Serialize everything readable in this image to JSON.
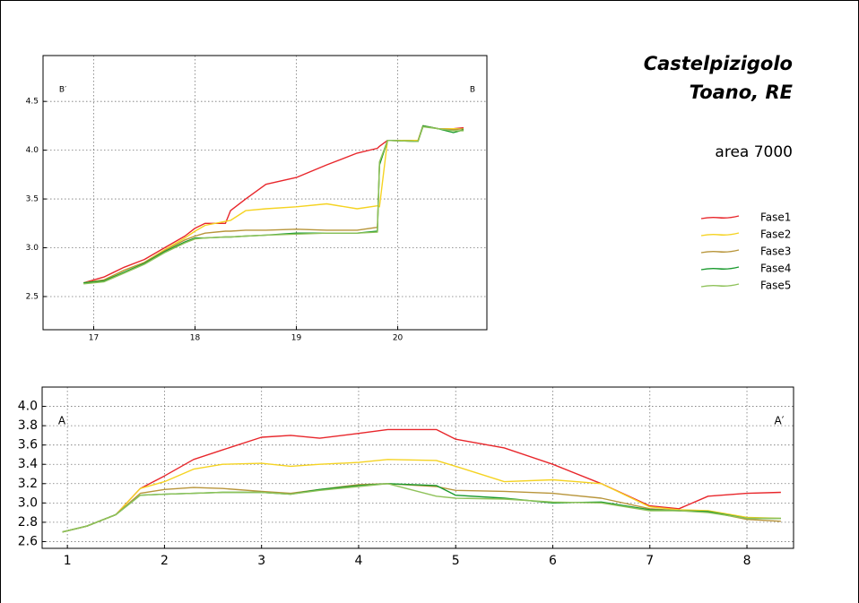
{
  "header": {
    "title": [
      "Castelpizigolo",
      "Toano, RE"
    ],
    "subtitle": "area 7000"
  },
  "chart_data": [
    {
      "type": "line",
      "annotations": [
        "B′",
        "B"
      ],
      "x": [
        16.9,
        17.1,
        17.3,
        17.5,
        17.7,
        17.9,
        18.0,
        18.1,
        18.3,
        18.35,
        18.5,
        18.7,
        19.0,
        19.3,
        19.6,
        19.8,
        19.82,
        19.9,
        20.2,
        20.25,
        20.4,
        20.55,
        20.65
      ],
      "xlim": [
        16.5,
        20.88
      ],
      "xticks": [
        17,
        18,
        19,
        20
      ],
      "ylim": [
        2.16,
        4.97
      ],
      "yticks": [
        2.5,
        {
          "value": 3,
          "label": "3.0"
        },
        3.5,
        {
          "value": 4,
          "label": "4.0"
        },
        4.5
      ],
      "grid": true,
      "series": [
        {
          "name": "Fase1",
          "color": "#e8262b",
          "values": [
            2.64,
            2.7,
            2.8,
            2.88,
            3.0,
            3.12,
            3.2,
            3.25,
            3.25,
            3.38,
            3.5,
            3.65,
            3.72,
            3.85,
            3.97,
            4.02,
            4.04,
            4.1,
            4.1,
            4.25,
            4.22,
            4.22,
            4.23
          ]
        },
        {
          "name": "Fase2",
          "color": "#f5d322",
          "values": [
            2.64,
            2.67,
            2.77,
            2.85,
            2.98,
            3.1,
            3.17,
            3.23,
            3.27,
            3.28,
            3.38,
            3.4,
            3.42,
            3.45,
            3.4,
            3.43,
            3.42,
            4.1,
            4.1,
            4.25,
            4.22,
            4.22,
            4.22
          ]
        },
        {
          "name": "Fase3",
          "color": "#b8953a",
          "values": [
            2.64,
            2.67,
            2.77,
            2.85,
            2.97,
            3.08,
            3.12,
            3.15,
            3.17,
            3.17,
            3.18,
            3.18,
            3.19,
            3.18,
            3.18,
            3.21,
            3.85,
            4.1,
            4.09,
            4.25,
            4.22,
            4.21,
            4.22
          ]
        },
        {
          "name": "Fase4",
          "color": "#1a9a2e",
          "values": [
            2.64,
            2.66,
            2.75,
            2.84,
            2.96,
            3.06,
            3.1,
            3.1,
            3.11,
            3.11,
            3.12,
            3.13,
            3.15,
            3.15,
            3.15,
            3.17,
            3.85,
            4.1,
            4.09,
            4.25,
            4.22,
            4.18,
            4.21
          ]
        },
        {
          "name": "Fase5",
          "color": "#8fc25a",
          "values": [
            2.63,
            2.65,
            2.74,
            2.83,
            2.95,
            3.05,
            3.09,
            3.1,
            3.11,
            3.11,
            3.12,
            3.13,
            3.14,
            3.15,
            3.15,
            3.16,
            3.88,
            4.1,
            4.09,
            4.24,
            4.22,
            4.2,
            4.2
          ]
        }
      ]
    },
    {
      "type": "line",
      "annotations": [
        "A",
        "A′"
      ],
      "x": [
        0.95,
        1.2,
        1.5,
        1.75,
        2.0,
        2.3,
        2.6,
        3.0,
        3.3,
        3.6,
        4.0,
        4.3,
        4.8,
        5.0,
        5.5,
        6.0,
        6.5,
        7.0,
        7.3,
        7.6,
        8.0,
        8.35
      ],
      "xlim": [
        0.74,
        8.48
      ],
      "xticks": [
        1,
        2,
        3,
        4,
        5,
        6,
        7,
        8
      ],
      "ylim": [
        2.53,
        4.2
      ],
      "yticks": [
        2.6,
        2.8,
        {
          "value": 3,
          "label": "3.0"
        },
        3.2,
        3.4,
        3.6,
        3.8,
        {
          "value": 4,
          "label": "4.0"
        }
      ],
      "grid": true,
      "series": [
        {
          "color": "#e8262b",
          "values": [
            2.7,
            2.76,
            2.88,
            3.15,
            3.28,
            3.45,
            3.55,
            3.68,
            3.7,
            3.67,
            3.72,
            3.76,
            3.76,
            3.66,
            3.57,
            3.4,
            3.2,
            2.97,
            2.94,
            3.07,
            3.1,
            3.11
          ]
        },
        {
          "color": "#f5d322",
          "values": [
            2.7,
            2.76,
            2.88,
            3.15,
            3.22,
            3.35,
            3.4,
            3.41,
            3.38,
            3.4,
            3.42,
            3.45,
            3.44,
            3.38,
            3.22,
            3.24,
            3.2,
            2.96,
            2.93,
            2.92,
            2.85,
            2.84
          ]
        },
        {
          "color": "#b8953a",
          "values": [
            2.7,
            2.76,
            2.88,
            3.1,
            3.14,
            3.16,
            3.15,
            3.12,
            3.1,
            3.14,
            3.19,
            3.2,
            3.17,
            3.13,
            3.12,
            3.1,
            3.05,
            2.94,
            2.92,
            2.91,
            2.83,
            2.81
          ]
        },
        {
          "color": "#1a9a2e",
          "values": [
            2.7,
            2.76,
            2.88,
            3.08,
            3.09,
            3.1,
            3.11,
            3.11,
            3.09,
            3.14,
            3.18,
            3.2,
            3.18,
            3.08,
            3.05,
            3.0,
            3.01,
            2.93,
            2.92,
            2.91,
            2.84,
            2.84
          ]
        },
        {
          "color": "#8fc25a",
          "values": [
            2.7,
            2.76,
            2.88,
            3.08,
            3.09,
            3.1,
            3.11,
            3.11,
            3.09,
            3.13,
            3.17,
            3.2,
            3.07,
            3.05,
            3.04,
            3.01,
            3.0,
            2.92,
            2.92,
            2.9,
            2.84,
            2.84
          ]
        }
      ]
    }
  ]
}
